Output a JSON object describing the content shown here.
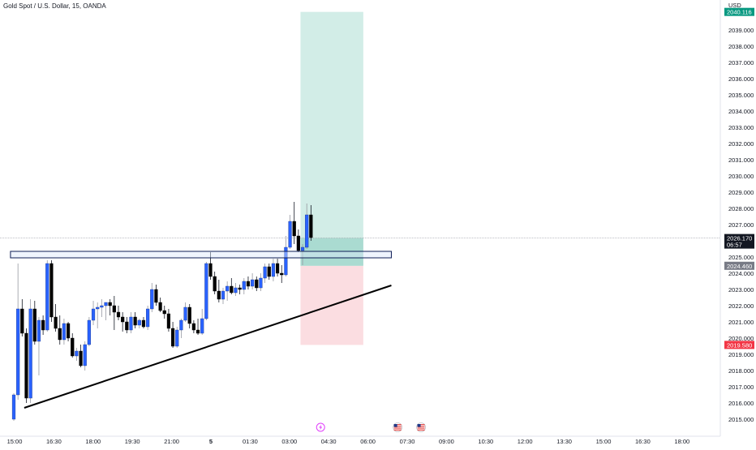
{
  "header": {
    "title": "Gold Spot / U.S. Dollar, 15, OANDA",
    "currency": "USD"
  },
  "colors": {
    "bull": "#2962ff",
    "bear": "#000000",
    "bull_wick": "#9598a1",
    "bear_wick": "#131722",
    "profit_zone": "#d2ede7",
    "loss_zone": "#fbdde1",
    "entry_zone": "#a3d7cd",
    "target_tag": "#089981",
    "stop_tag": "#f23645",
    "current_tag": "#131722",
    "entry_tag": "#787b86",
    "resistance_fill": "#dce6fb",
    "resistance_border": "#0d1c55",
    "trendline": "#000000"
  },
  "chart_data": {
    "type": "candlestick",
    "symbol": "Gold Spot / U.S. Dollar",
    "interval": "15",
    "source": "OANDA",
    "x_tick_labels": [
      "15:00",
      "16:30",
      "18:00",
      "19:30",
      "21:00",
      "5",
      "01:30",
      "03:00",
      "04:30",
      "06:00",
      "07:30",
      "09:00",
      "10:30",
      "12:00",
      "13:30",
      "15:00",
      "16:30",
      "18:00"
    ],
    "y_tick_labels": [
      "2015.000",
      "2016.000",
      "2017.000",
      "2018.000",
      "2019.000",
      "2020.000",
      "2021.000",
      "2022.000",
      "2023.000",
      "2024.000",
      "2025.000",
      "2026.000",
      "2027.000",
      "2028.000",
      "2029.000",
      "2030.000",
      "2031.000",
      "2032.000",
      "2033.000",
      "2034.000",
      "2035.000",
      "2036.000",
      "2037.000",
      "2038.000",
      "2039.000"
    ],
    "ylim": [
      2014.1,
      2040.6
    ],
    "candles": [
      {
        "o": 2015.0,
        "h": 2016.6,
        "l": 2014.9,
        "c": 2016.5
      },
      {
        "o": 2016.5,
        "h": 2024.6,
        "l": 2016.2,
        "c": 2021.8
      },
      {
        "o": 2021.8,
        "h": 2022.4,
        "l": 2020.1,
        "c": 2020.3
      },
      {
        "o": 2020.3,
        "h": 2020.6,
        "l": 2016.0,
        "c": 2016.3
      },
      {
        "o": 2016.3,
        "h": 2022.4,
        "l": 2016.0,
        "c": 2021.8
      },
      {
        "o": 2021.8,
        "h": 2022.3,
        "l": 2019.6,
        "c": 2019.8
      },
      {
        "o": 2019.8,
        "h": 2021.3,
        "l": 2017.7,
        "c": 2021.1
      },
      {
        "o": 2021.1,
        "h": 2021.4,
        "l": 2020.2,
        "c": 2020.5
      },
      {
        "o": 2020.5,
        "h": 2024.8,
        "l": 2020.4,
        "c": 2024.6
      },
      {
        "o": 2024.6,
        "h": 2024.8,
        "l": 2021.0,
        "c": 2021.3
      },
      {
        "o": 2021.3,
        "h": 2022.1,
        "l": 2020.4,
        "c": 2020.6
      },
      {
        "o": 2020.6,
        "h": 2021.4,
        "l": 2019.6,
        "c": 2019.9
      },
      {
        "o": 2019.9,
        "h": 2021.2,
        "l": 2019.6,
        "c": 2020.9
      },
      {
        "o": 2020.9,
        "h": 2021.0,
        "l": 2019.8,
        "c": 2020.0
      },
      {
        "o": 2020.0,
        "h": 2020.3,
        "l": 2018.8,
        "c": 2018.9
      },
      {
        "o": 2018.9,
        "h": 2019.4,
        "l": 2018.6,
        "c": 2019.2
      },
      {
        "o": 2019.2,
        "h": 2019.6,
        "l": 2018.2,
        "c": 2018.3
      },
      {
        "o": 2018.3,
        "h": 2019.8,
        "l": 2018.0,
        "c": 2019.6
      },
      {
        "o": 2019.6,
        "h": 2021.3,
        "l": 2019.5,
        "c": 2021.1
      },
      {
        "o": 2021.1,
        "h": 2022.3,
        "l": 2020.8,
        "c": 2021.8
      },
      {
        "o": 2021.8,
        "h": 2022.2,
        "l": 2020.6,
        "c": 2021.9
      },
      {
        "o": 2021.9,
        "h": 2022.4,
        "l": 2021.3,
        "c": 2022.0
      },
      {
        "o": 2022.0,
        "h": 2022.2,
        "l": 2021.1,
        "c": 2022.2
      },
      {
        "o": 2022.2,
        "h": 2022.4,
        "l": 2021.4,
        "c": 2022.0
      },
      {
        "o": 2022.0,
        "h": 2022.6,
        "l": 2020.5,
        "c": 2021.6
      },
      {
        "o": 2021.6,
        "h": 2022.0,
        "l": 2021.1,
        "c": 2021.3
      },
      {
        "o": 2021.3,
        "h": 2021.6,
        "l": 2020.4,
        "c": 2021.0
      },
      {
        "o": 2021.0,
        "h": 2021.3,
        "l": 2020.3,
        "c": 2020.5
      },
      {
        "o": 2020.5,
        "h": 2021.6,
        "l": 2020.3,
        "c": 2021.3
      },
      {
        "o": 2021.3,
        "h": 2021.6,
        "l": 2020.6,
        "c": 2020.8
      },
      {
        "o": 2020.8,
        "h": 2021.2,
        "l": 2020.6,
        "c": 2021.1
      },
      {
        "o": 2021.1,
        "h": 2021.3,
        "l": 2020.6,
        "c": 2020.7
      },
      {
        "o": 2020.7,
        "h": 2022.0,
        "l": 2020.5,
        "c": 2021.8
      },
      {
        "o": 2021.8,
        "h": 2023.4,
        "l": 2021.6,
        "c": 2023.0
      },
      {
        "o": 2023.0,
        "h": 2023.3,
        "l": 2022.0,
        "c": 2022.2
      },
      {
        "o": 2022.2,
        "h": 2022.5,
        "l": 2021.6,
        "c": 2021.7
      },
      {
        "o": 2021.7,
        "h": 2022.0,
        "l": 2021.2,
        "c": 2021.5
      },
      {
        "o": 2021.5,
        "h": 2021.8,
        "l": 2020.4,
        "c": 2020.6
      },
      {
        "o": 2020.6,
        "h": 2021.0,
        "l": 2019.4,
        "c": 2019.5
      },
      {
        "o": 2019.5,
        "h": 2020.7,
        "l": 2019.4,
        "c": 2020.5
      },
      {
        "o": 2020.5,
        "h": 2021.2,
        "l": 2020.0,
        "c": 2021.1
      },
      {
        "o": 2021.1,
        "h": 2022.2,
        "l": 2021.0,
        "c": 2021.9
      },
      {
        "o": 2021.9,
        "h": 2022.1,
        "l": 2020.6,
        "c": 2020.9
      },
      {
        "o": 2020.9,
        "h": 2021.1,
        "l": 2020.3,
        "c": 2020.5
      },
      {
        "o": 2020.5,
        "h": 2021.2,
        "l": 2020.2,
        "c": 2020.3
      },
      {
        "o": 2020.3,
        "h": 2021.8,
        "l": 2020.2,
        "c": 2021.2
      },
      {
        "o": 2021.2,
        "h": 2024.7,
        "l": 2021.1,
        "c": 2024.6
      },
      {
        "o": 2024.6,
        "h": 2025.3,
        "l": 2023.6,
        "c": 2023.8
      },
      {
        "o": 2023.8,
        "h": 2024.1,
        "l": 2022.7,
        "c": 2022.9
      },
      {
        "o": 2022.9,
        "h": 2023.6,
        "l": 2022.2,
        "c": 2022.4
      },
      {
        "o": 2022.4,
        "h": 2023.1,
        "l": 2022.1,
        "c": 2022.9
      },
      {
        "o": 2022.9,
        "h": 2023.5,
        "l": 2022.3,
        "c": 2023.2
      },
      {
        "o": 2023.2,
        "h": 2023.7,
        "l": 2022.7,
        "c": 2022.8
      },
      {
        "o": 2022.8,
        "h": 2023.4,
        "l": 2022.6,
        "c": 2023.1
      },
      {
        "o": 2023.1,
        "h": 2023.3,
        "l": 2022.7,
        "c": 2023.0
      },
      {
        "o": 2023.0,
        "h": 2023.7,
        "l": 2022.7,
        "c": 2023.5
      },
      {
        "o": 2023.5,
        "h": 2023.8,
        "l": 2023.0,
        "c": 2023.2
      },
      {
        "o": 2023.2,
        "h": 2024.0,
        "l": 2023.0,
        "c": 2023.6
      },
      {
        "o": 2023.6,
        "h": 2023.8,
        "l": 2022.9,
        "c": 2023.1
      },
      {
        "o": 2023.1,
        "h": 2024.0,
        "l": 2022.9,
        "c": 2023.7
      },
      {
        "o": 2023.7,
        "h": 2024.6,
        "l": 2023.4,
        "c": 2024.4
      },
      {
        "o": 2024.4,
        "h": 2024.6,
        "l": 2023.6,
        "c": 2023.8
      },
      {
        "o": 2023.8,
        "h": 2024.9,
        "l": 2023.5,
        "c": 2024.6
      },
      {
        "o": 2024.6,
        "h": 2024.9,
        "l": 2023.8,
        "c": 2024.0
      },
      {
        "o": 2024.0,
        "h": 2024.5,
        "l": 2023.4,
        "c": 2023.9
      },
      {
        "o": 2023.9,
        "h": 2026.3,
        "l": 2023.8,
        "c": 2025.6
      },
      {
        "o": 2025.6,
        "h": 2027.6,
        "l": 2025.5,
        "c": 2027.2
      },
      {
        "o": 2027.2,
        "h": 2028.4,
        "l": 2025.8,
        "c": 2026.3
      },
      {
        "o": 2026.3,
        "h": 2026.7,
        "l": 2025.3,
        "c": 2025.4
      },
      {
        "o": 2025.4,
        "h": 2025.8,
        "l": 2024.5,
        "c": 2025.6
      },
      {
        "o": 2025.6,
        "h": 2028.3,
        "l": 2025.5,
        "c": 2027.6
      },
      {
        "o": 2027.6,
        "h": 2028.2,
        "l": 2026.0,
        "c": 2026.2
      }
    ],
    "price_lines": {
      "current": 2026.17,
      "entry": 2024.46,
      "target": 2040.116,
      "stop": 2019.58
    },
    "tags": {
      "target": "2040.116",
      "current": "2026.170",
      "countdown": "06:57",
      "entry": "2024.460",
      "stop": "2019.580"
    },
    "position_tool": {
      "direction": "long",
      "entry": 2024.46,
      "target": 2040.116,
      "stop": 2019.58,
      "start_index": 68.5,
      "end_index": 83.5
    },
    "resistance_zone": {
      "top": 2025.35,
      "bottom": 2024.95,
      "start_index": -0.5,
      "end_index": 68.5
    },
    "trendline": {
      "from": {
        "index": 2.5,
        "price": 2015.7
      },
      "to": {
        "index": 68.5,
        "price": 2023.25
      }
    },
    "markers": [
      {
        "icon": "lightning-event-icon",
        "index": 73.3
      },
      {
        "icon": "us-flag-event-icon",
        "index": 91.7
      },
      {
        "icon": "us-flag-event-icon",
        "index": 97.3
      }
    ]
  }
}
